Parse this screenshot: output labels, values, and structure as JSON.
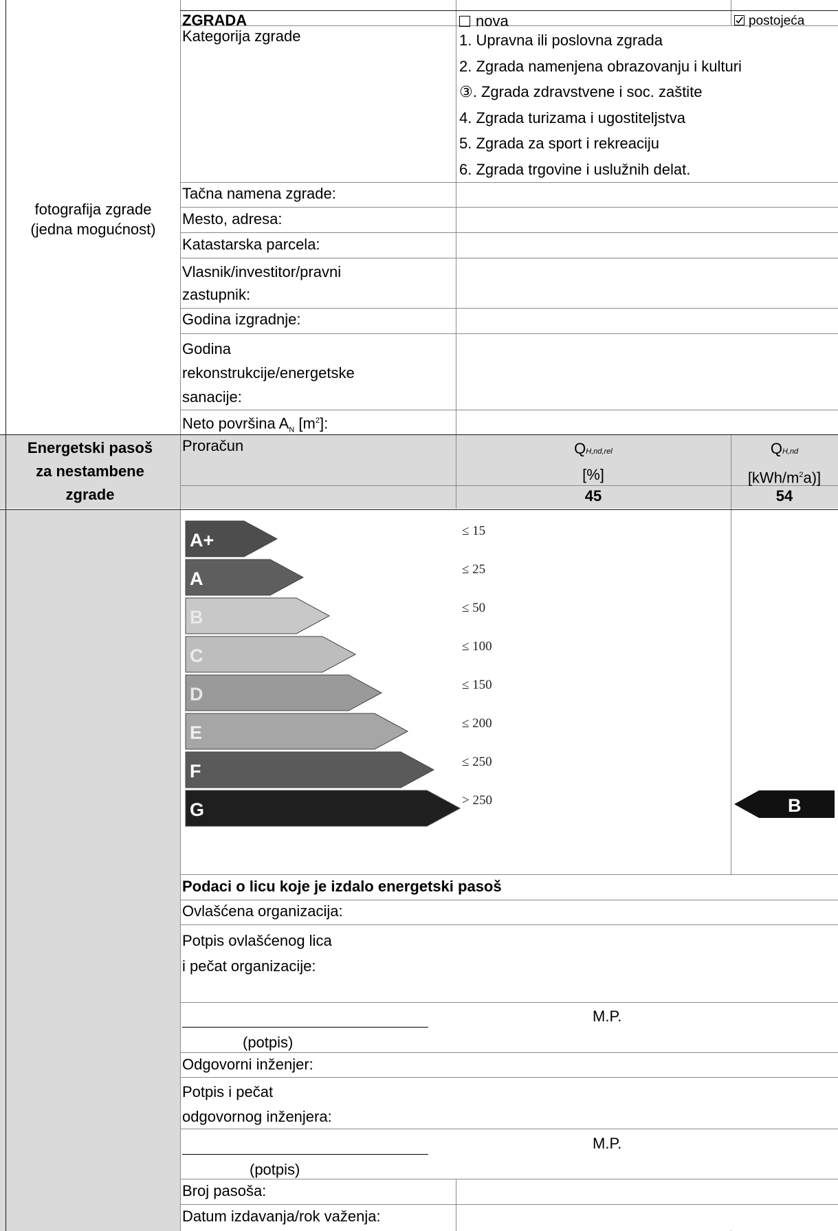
{
  "header": {
    "zgrada_label": "ZGRADA",
    "new_option": "nova",
    "existing_option": "postojeća",
    "new_checked": false,
    "existing_checked": true
  },
  "photo_placeholder": [
    "fotografija zgrade",
    "(jedna mogućnost)"
  ],
  "category": {
    "label": "Kategorija zgrade",
    "options": [
      "1. Upravna ili poslovna zgrada",
      "2. Zgrada namenjena obrazovanju i kulturi",
      "③. Zgrada zdravstvene i soc. zaštite",
      "4. Zgrada turizama i ugostiteljstva",
      "5. Zgrada za sport i rekreaciju",
      "6. Zgrada trgovine i uslužnih delat."
    ]
  },
  "fields": {
    "purpose": "Tačna namena zgrade:",
    "address": "Mesto, adresa:",
    "parcel": "Katastarska parcela:",
    "owner": [
      "Vlasnik/investitor/pravni",
      "zastupnik:"
    ],
    "year_built": "Godina izgradnje:",
    "year_reconstruction": [
      "Godina",
      "rekonstrukcije/energetske",
      "sanacije:"
    ],
    "net_area_prefix": "Neto površina A",
    "net_area_subscript": "N",
    "net_area_suffix": " [m",
    "net_area_sup": "2",
    "net_area_end": "]:"
  },
  "passport_title": [
    "Energetski pasoš",
    "za nestambene",
    "zgrade"
  ],
  "calculation": {
    "label": "Proračun",
    "col1_symbol": "Q",
    "col1_subscript": "H,nd,rel",
    "col1_unit": "[%]",
    "col1_value": "45",
    "col2_symbol": "Q",
    "col2_subscript": "H,nd",
    "col2_unit_prefix": "[kWh/m",
    "col2_unit_sup": "2",
    "col2_unit_suffix": "a)]",
    "col2_value": "54"
  },
  "energy_classes": [
    {
      "label": "A+",
      "limit": "≤ 15",
      "color": "#4d4d4d"
    },
    {
      "label": "A",
      "limit": "≤ 25",
      "color": "#5e5e5e"
    },
    {
      "label": "B",
      "limit": "≤ 50",
      "color": "#c8c8c8"
    },
    {
      "label": "C",
      "limit": "≤ 100",
      "color": "#bdbdbd"
    },
    {
      "label": "D",
      "limit": "≤ 150",
      "color": "#9a9a9a"
    },
    {
      "label": "E",
      "limit": "≤ 200",
      "color": "#a6a6a6"
    },
    {
      "label": "F",
      "limit": "≤ 250",
      "color": "#5a5a5a"
    },
    {
      "label": "G",
      "limit": "> 250",
      "color": "#1f1f1f"
    }
  ],
  "assigned_class": "B",
  "issuer": {
    "section_title": "Podaci o licu koje je izdalo energetski pasoš",
    "organization": "Ovlašćena organizacija:",
    "signature_label": [
      "Potpis ovlašćenog lica",
      "i pečat organizacije:"
    ],
    "mp1": "M.P.",
    "sign1": "(potpis)",
    "engineer": "Odgovorni inženjer:",
    "engineer_sign_label": [
      "Potpis i pečat",
      "odgovornog inženjera:"
    ],
    "mp2": "M.P.",
    "sign2": "(potpis)",
    "passport_number": "Broj pasoša:",
    "issue_date": "Datum izdavanja/rok važenja:"
  },
  "colors": {
    "title_band": "#dadada",
    "grid_line": "#8a8a8a"
  }
}
